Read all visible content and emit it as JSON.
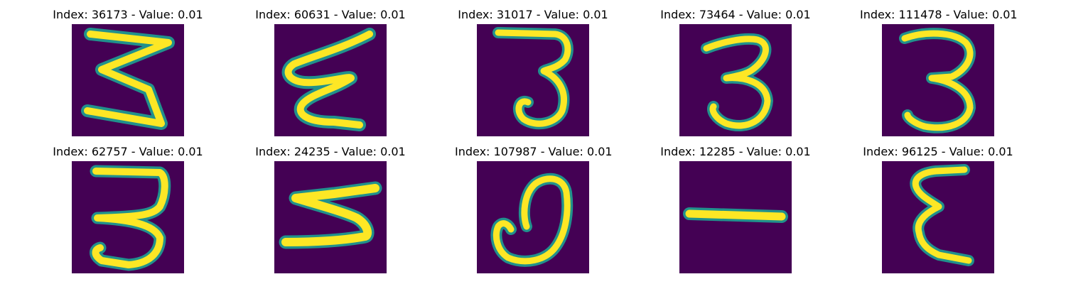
{
  "colors": {
    "background": "#440154",
    "stroke_outer": "#21918c",
    "stroke_mid": "#5ec962",
    "stroke_core": "#fde725"
  },
  "panels": [
    {
      "index": "36173",
      "value": "0.01",
      "title": "Index: 36173 - Value: 0.01"
    },
    {
      "index": "60631",
      "value": "0.01",
      "title": "Index: 60631 - Value: 0.01"
    },
    {
      "index": "31017",
      "value": "0.01",
      "title": "Index: 31017 - Value: 0.01"
    },
    {
      "index": "73464",
      "value": "0.01",
      "title": "Index: 73464 - Value: 0.01"
    },
    {
      "index": "111478",
      "value": "0.01",
      "title": "Index: 111478 - Value: 0.01"
    },
    {
      "index": "62757",
      "value": "0.01",
      "title": "Index: 62757 - Value: 0.01"
    },
    {
      "index": "24235",
      "value": "0.01",
      "title": "Index: 24235 - Value: 0.01"
    },
    {
      "index": "107987",
      "value": "0.01",
      "title": "Index: 107987 - Value: 0.01"
    },
    {
      "index": "12285",
      "value": "0.01",
      "title": "Index: 12285 - Value: 0.01"
    },
    {
      "index": "96125",
      "value": "0.01",
      "title": "Index: 96125 - Value: 0.01"
    }
  ]
}
